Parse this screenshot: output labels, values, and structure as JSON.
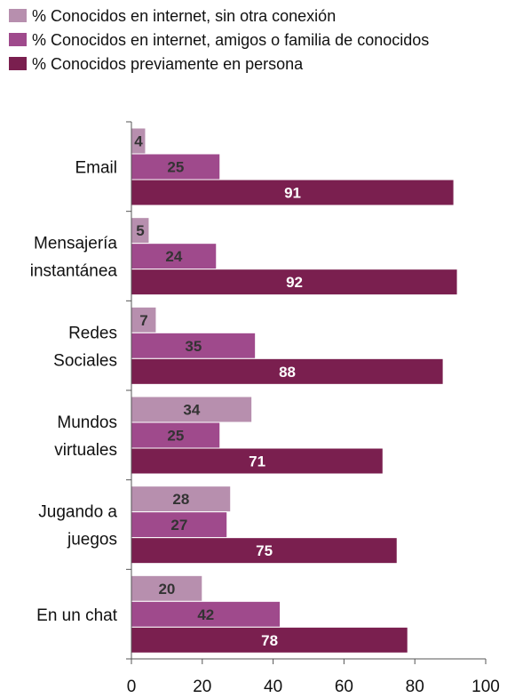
{
  "chart_data": {
    "type": "bar",
    "orientation": "horizontal",
    "categories": [
      [
        "Email"
      ],
      [
        "Mensajería",
        "instantánea"
      ],
      [
        "Redes",
        "Sociales"
      ],
      [
        "Mundos",
        "virtuales"
      ],
      [
        "Jugando a",
        "juegos"
      ],
      [
        "En un chat"
      ]
    ],
    "series": [
      {
        "name": "% Conocidos en internet, sin otra conexión",
        "color": "#b78fae",
        "label_color": "#333333",
        "values": [
          4,
          5,
          7,
          34,
          28,
          20
        ]
      },
      {
        "name": "% Conocidos en internet, amigos o familia de conocidos",
        "color": "#9f4a8c",
        "label_color": "#333333",
        "values": [
          25,
          24,
          35,
          25,
          27,
          42
        ]
      },
      {
        "name": "% Conocidos previamente en persona",
        "color": "#7a1f4f",
        "label_color": "#ffffff",
        "values": [
          91,
          92,
          88,
          71,
          75,
          78
        ]
      }
    ],
    "xlim": [
      0,
      100
    ],
    "xticks": [
      "0",
      "20",
      "40",
      "60",
      "80",
      "100"
    ],
    "legend_position": "top",
    "grid": false
  }
}
